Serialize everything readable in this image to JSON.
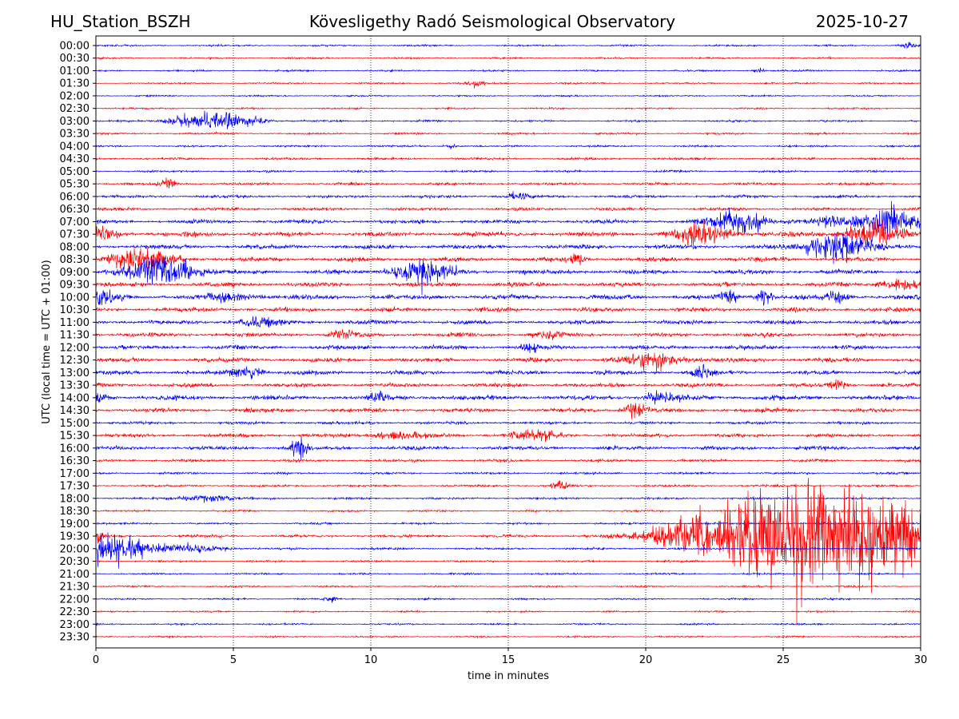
{
  "header": {
    "station": "HU_Station_BSZH",
    "observatory": "Kövesligethy Radó Seismological Observatory",
    "date": "2025-10-27"
  },
  "chart_data": {
    "type": "line",
    "title": "Kövesligethy Radó Seismological Observatory",
    "xlabel": "time in minutes",
    "ylabel": "UTC (local time = UTC + 01:00)",
    "xlim": [
      0,
      30
    ],
    "xticks": [
      0,
      5,
      10,
      15,
      20,
      25,
      30
    ],
    "grid": "vertical dotted at every 5 minutes",
    "colors": [
      "#0000ff",
      "#ff0000"
    ],
    "rows": [
      "00:00",
      "00:30",
      "01:00",
      "01:30",
      "02:00",
      "02:30",
      "03:00",
      "03:30",
      "04:00",
      "04:30",
      "05:00",
      "05:30",
      "06:00",
      "06:30",
      "07:00",
      "07:30",
      "08:00",
      "08:30",
      "09:00",
      "09:30",
      "10:00",
      "10:30",
      "11:00",
      "11:30",
      "12:00",
      "12:30",
      "13:00",
      "13:30",
      "14:00",
      "14:30",
      "15:00",
      "15:30",
      "16:00",
      "16:30",
      "17:00",
      "17:30",
      "18:00",
      "18:30",
      "19:00",
      "19:30",
      "20:00",
      "20:30",
      "21:00",
      "21:30",
      "22:00",
      "22:30",
      "23:00",
      "23:30"
    ],
    "noise_level": [
      0.8,
      0.8,
      0.8,
      0.8,
      0.7,
      0.8,
      0.9,
      0.9,
      0.9,
      1.1,
      1.0,
      1.2,
      1.3,
      1.4,
      1.8,
      2.2,
      2.0,
      2.0,
      2.0,
      2.0,
      2.2,
      2.0,
      1.9,
      1.9,
      1.9,
      2.0,
      1.9,
      1.9,
      2.2,
      1.9,
      1.3,
      1.7,
      1.8,
      1.3,
      1.0,
      1.0,
      1.0,
      0.9,
      0.9,
      1.3,
      1.0,
      0.9,
      0.8,
      0.8,
      0.8,
      0.8,
      0.8,
      0.8
    ],
    "events": [
      {
        "row": 0,
        "minute": 29.5,
        "amp": 2.5,
        "dur": 0.3
      },
      {
        "row": 2,
        "minute": 24.1,
        "amp": 2,
        "dur": 0.2
      },
      {
        "row": 3,
        "minute": 13.8,
        "amp": 4,
        "dur": 0.3
      },
      {
        "row": 6,
        "minute": 4.6,
        "amp": 8,
        "dur": 1.2
      },
      {
        "row": 6,
        "minute": 3.0,
        "amp": 3,
        "dur": 0.6
      },
      {
        "row": 8,
        "minute": 12.9,
        "amp": 2,
        "dur": 0.2
      },
      {
        "row": 11,
        "minute": 2.6,
        "amp": 5,
        "dur": 0.3
      },
      {
        "row": 12,
        "minute": 15.3,
        "amp": 3,
        "dur": 0.4
      },
      {
        "row": 14,
        "minute": 23.4,
        "amp": 12,
        "dur": 0.9
      },
      {
        "row": 14,
        "minute": 28.9,
        "amp": 14,
        "dur": 0.9
      },
      {
        "row": 14,
        "minute": 27.0,
        "amp": 5,
        "dur": 0.8
      },
      {
        "row": 15,
        "minute": 0.3,
        "amp": 5,
        "dur": 0.6
      },
      {
        "row": 15,
        "minute": 22.0,
        "amp": 10,
        "dur": 1.0
      },
      {
        "row": 15,
        "minute": 28.3,
        "amp": 10,
        "dur": 1.0
      },
      {
        "row": 16,
        "minute": 27.0,
        "amp": 14,
        "dur": 1.0
      },
      {
        "row": 17,
        "minute": 1.6,
        "amp": 10,
        "dur": 1.2
      },
      {
        "row": 17,
        "minute": 17.5,
        "amp": 4,
        "dur": 0.3
      },
      {
        "row": 18,
        "minute": 2.5,
        "amp": 14,
        "dur": 1.1
      },
      {
        "row": 18,
        "minute": 11.9,
        "amp": 12,
        "dur": 1.0
      },
      {
        "row": 19,
        "minute": 29.2,
        "amp": 5,
        "dur": 0.7
      },
      {
        "row": 20,
        "minute": 0.3,
        "amp": 6,
        "dur": 0.5
      },
      {
        "row": 20,
        "minute": 5.0,
        "amp": 4,
        "dur": 0.8
      },
      {
        "row": 20,
        "minute": 23.0,
        "amp": 6,
        "dur": 0.3
      },
      {
        "row": 20,
        "minute": 24.3,
        "amp": 6,
        "dur": 0.3
      },
      {
        "row": 20,
        "minute": 27.0,
        "amp": 4,
        "dur": 0.4
      },
      {
        "row": 22,
        "minute": 6.0,
        "amp": 4,
        "dur": 0.8
      },
      {
        "row": 23,
        "minute": 9.0,
        "amp": 4,
        "dur": 0.4
      },
      {
        "row": 23,
        "minute": 16.5,
        "amp": 4,
        "dur": 0.5
      },
      {
        "row": 24,
        "minute": 15.8,
        "amp": 4,
        "dur": 0.3
      },
      {
        "row": 25,
        "minute": 20.3,
        "amp": 8,
        "dur": 1.0
      },
      {
        "row": 26,
        "minute": 5.5,
        "amp": 6,
        "dur": 0.5
      },
      {
        "row": 26,
        "minute": 22.0,
        "amp": 7,
        "dur": 0.3
      },
      {
        "row": 27,
        "minute": 27.0,
        "amp": 4,
        "dur": 0.3
      },
      {
        "row": 28,
        "minute": 10.3,
        "amp": 5,
        "dur": 0.3
      },
      {
        "row": 28,
        "minute": 20.5,
        "amp": 5,
        "dur": 0.6
      },
      {
        "row": 28,
        "minute": 0.1,
        "amp": 4,
        "dur": 0.3
      },
      {
        "row": 29,
        "minute": 19.6,
        "amp": 6,
        "dur": 0.4
      },
      {
        "row": 31,
        "minute": 11.0,
        "amp": 4,
        "dur": 0.8
      },
      {
        "row": 31,
        "minute": 16.0,
        "amp": 5,
        "dur": 0.8
      },
      {
        "row": 32,
        "minute": 7.4,
        "amp": 8,
        "dur": 0.3
      },
      {
        "row": 35,
        "minute": 16.9,
        "amp": 4,
        "dur": 0.3
      },
      {
        "row": 36,
        "minute": 4.0,
        "amp": 3,
        "dur": 1.0
      },
      {
        "row": 39,
        "minute": 22.5,
        "amp": 20,
        "dur": 2.0
      },
      {
        "row": 39,
        "minute": 25.0,
        "amp": 42,
        "dur": 1.6
      },
      {
        "row": 39,
        "minute": 27.5,
        "amp": 40,
        "dur": 1.5
      },
      {
        "row": 39,
        "minute": 29.3,
        "amp": 24,
        "dur": 1.0
      },
      {
        "row": 39,
        "minute": 0.1,
        "amp": 8,
        "dur": 0.15
      },
      {
        "row": 40,
        "minute": 0.2,
        "amp": 15,
        "dur": 1.6
      },
      {
        "row": 40,
        "minute": 3.5,
        "amp": 3,
        "dur": 1.3
      },
      {
        "row": 44,
        "minute": 8.5,
        "amp": 3,
        "dur": 0.2
      }
    ]
  }
}
